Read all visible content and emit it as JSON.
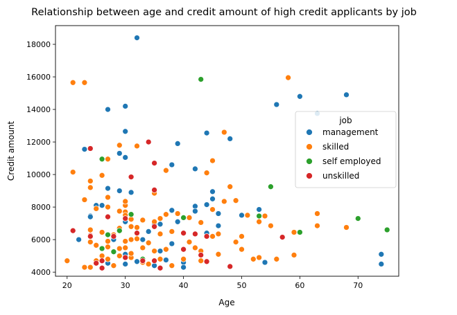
{
  "chart_data": {
    "type": "scatter",
    "title": "Relationship between age and credit amount of high credit applicants by job",
    "xlabel": "Age",
    "ylabel": "Credit amount",
    "xlim": [
      18,
      77
    ],
    "ylim": [
      3750,
      19150
    ],
    "xticks": [
      20,
      30,
      40,
      50,
      60,
      70
    ],
    "yticks": [
      4000,
      6000,
      8000,
      10000,
      12000,
      14000,
      16000,
      18000
    ],
    "grid": false,
    "legend": {
      "title": "job",
      "position": "center-right"
    },
    "series": [
      {
        "name": "management",
        "color": "#1f77b4",
        "points": [
          [
            32,
            18400
          ],
          [
            30,
            14200
          ],
          [
            27,
            14000
          ],
          [
            30,
            12650
          ],
          [
            23,
            11550
          ],
          [
            29,
            11300
          ],
          [
            39,
            11900
          ],
          [
            30,
            11050
          ],
          [
            38,
            10600
          ],
          [
            42,
            10350
          ],
          [
            44,
            12550
          ],
          [
            48,
            12200
          ],
          [
            56,
            14300
          ],
          [
            60,
            14800
          ],
          [
            63,
            13750
          ],
          [
            68,
            14900
          ],
          [
            45,
            8950
          ],
          [
            45,
            8500
          ],
          [
            44,
            8150
          ],
          [
            42,
            8050
          ],
          [
            42,
            7750
          ],
          [
            46,
            7600
          ],
          [
            46,
            6850
          ],
          [
            44,
            6400
          ],
          [
            50,
            7500
          ],
          [
            53,
            7850
          ],
          [
            54,
            4600
          ],
          [
            74,
            5100
          ],
          [
            74,
            4500
          ],
          [
            38,
            7800
          ],
          [
            39,
            7100
          ],
          [
            38,
            5750
          ],
          [
            40,
            4600
          ],
          [
            40,
            4300
          ],
          [
            36,
            6950
          ],
          [
            36,
            5300
          ],
          [
            35,
            6950
          ],
          [
            37,
            4750
          ],
          [
            33,
            6000
          ],
          [
            32,
            4650
          ],
          [
            31,
            8900
          ],
          [
            30,
            7100
          ],
          [
            30,
            5100
          ],
          [
            30,
            4500
          ],
          [
            29,
            9000
          ],
          [
            27,
            9150
          ],
          [
            27,
            4550
          ],
          [
            26,
            8100
          ],
          [
            25,
            8100
          ],
          [
            24,
            7450
          ],
          [
            24,
            7400
          ],
          [
            22,
            6000
          ],
          [
            28,
            6000
          ],
          [
            34,
            6500
          ],
          [
            35,
            4400
          ],
          [
            36,
            7300
          ]
        ]
      },
      {
        "name": "skilled",
        "color": "#ff7f0e",
        "points": [
          [
            21,
            15650
          ],
          [
            23,
            15650
          ],
          [
            58,
            15950
          ],
          [
            47,
            12600
          ],
          [
            32,
            11750
          ],
          [
            29,
            11800
          ],
          [
            44,
            10100
          ],
          [
            45,
            10850
          ],
          [
            21,
            10150
          ],
          [
            24,
            9600
          ],
          [
            27,
            10950
          ],
          [
            37,
            10250
          ],
          [
            35,
            8850
          ],
          [
            26,
            9950
          ],
          [
            48,
            9250
          ],
          [
            24,
            9200
          ],
          [
            27,
            8600
          ],
          [
            27,
            8000
          ],
          [
            23,
            8450
          ],
          [
            25,
            7900
          ],
          [
            29,
            7750
          ],
          [
            30,
            8100
          ],
          [
            30,
            7700
          ],
          [
            30,
            7500
          ],
          [
            30,
            8350
          ],
          [
            31,
            7250
          ],
          [
            32,
            6750
          ],
          [
            33,
            7200
          ],
          [
            35,
            7100
          ],
          [
            36,
            7300
          ],
          [
            37,
            7550
          ],
          [
            39,
            7600
          ],
          [
            41,
            7350
          ],
          [
            43,
            7050
          ],
          [
            45,
            7850
          ],
          [
            47,
            8350
          ],
          [
            49,
            8400
          ],
          [
            51,
            7500
          ],
          [
            53,
            7100
          ],
          [
            54,
            7450
          ],
          [
            55,
            6850
          ],
          [
            59,
            6450
          ],
          [
            63,
            7600
          ],
          [
            63,
            6850
          ],
          [
            68,
            6750
          ],
          [
            24,
            6600
          ],
          [
            26,
            6450
          ],
          [
            28,
            6300
          ],
          [
            29,
            6700
          ],
          [
            30,
            5900
          ],
          [
            31,
            6000
          ],
          [
            32,
            6050
          ],
          [
            34,
            5800
          ],
          [
            36,
            6350
          ],
          [
            38,
            6500
          ],
          [
            41,
            5850
          ],
          [
            42,
            5500
          ],
          [
            43,
            5300
          ],
          [
            45,
            6200
          ],
          [
            46,
            6350
          ],
          [
            49,
            5850
          ],
          [
            50,
            6200
          ],
          [
            50,
            5400
          ],
          [
            52,
            4800
          ],
          [
            53,
            4900
          ],
          [
            56,
            4800
          ],
          [
            59,
            5050
          ],
          [
            20,
            4700
          ],
          [
            23,
            4300
          ],
          [
            24,
            4300
          ],
          [
            25,
            4700
          ],
          [
            26,
            5000
          ],
          [
            27,
            4800
          ],
          [
            28,
            4400
          ],
          [
            29,
            5000
          ],
          [
            31,
            4900
          ],
          [
            33,
            4600
          ],
          [
            34,
            4500
          ],
          [
            35,
            5300
          ],
          [
            36,
            4800
          ],
          [
            38,
            4400
          ],
          [
            40,
            4800
          ],
          [
            43,
            4700
          ],
          [
            46,
            5100
          ],
          [
            24,
            5850
          ],
          [
            25,
            5650
          ],
          [
            27,
            5550
          ],
          [
            29,
            5450
          ],
          [
            31,
            5150
          ],
          [
            33,
            5500
          ],
          [
            37,
            5400
          ],
          [
            27,
            5900
          ],
          [
            30,
            5500
          ],
          [
            31,
            6800
          ]
        ]
      },
      {
        "name": "self employed",
        "color": "#2ca02c",
        "points": [
          [
            43,
            15850
          ],
          [
            26,
            10950
          ],
          [
            55,
            9250
          ],
          [
            31,
            7550
          ],
          [
            40,
            7350
          ],
          [
            53,
            7450
          ],
          [
            70,
            7300
          ],
          [
            75,
            6600
          ],
          [
            60,
            6450
          ],
          [
            29,
            6550
          ],
          [
            27,
            6300
          ],
          [
            26,
            5450
          ],
          [
            28,
            5250
          ],
          [
            33,
            4800
          ]
        ]
      },
      {
        "name": "unskilled",
        "color": "#d62728",
        "points": [
          [
            34,
            12000
          ],
          [
            24,
            11600
          ],
          [
            35,
            10700
          ],
          [
            31,
            9850
          ],
          [
            35,
            9050
          ],
          [
            21,
            6550
          ],
          [
            24,
            6250
          ],
          [
            28,
            6200
          ],
          [
            32,
            6400
          ],
          [
            35,
            6800
          ],
          [
            40,
            6400
          ],
          [
            42,
            6350
          ],
          [
            44,
            6200
          ],
          [
            57,
            6150
          ],
          [
            40,
            5400
          ],
          [
            43,
            5050
          ],
          [
            44,
            4650
          ],
          [
            48,
            4350
          ],
          [
            36,
            4250
          ],
          [
            35,
            4700
          ],
          [
            33,
            4700
          ],
          [
            30,
            4900
          ],
          [
            26,
            4700
          ],
          [
            26,
            4250
          ],
          [
            25,
            4550
          ],
          [
            24,
            6200
          ],
          [
            27,
            7400
          ],
          [
            30,
            7300
          ]
        ]
      }
    ]
  }
}
